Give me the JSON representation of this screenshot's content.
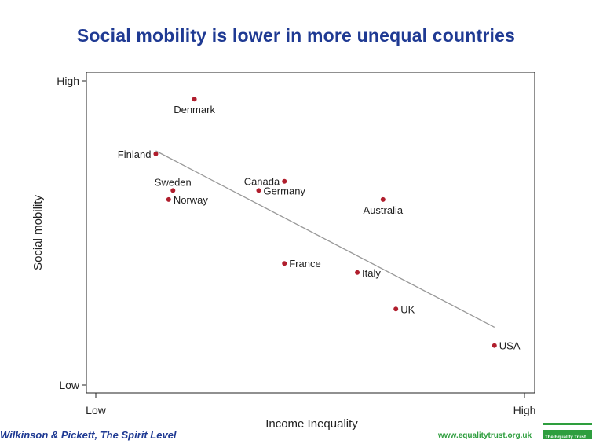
{
  "title": "Social mobility is lower in more unequal countries",
  "credit": "Wilkinson & Pickett, The Spirit Level",
  "website": "www.equalitytrust.org.uk",
  "logo_text": "The Equality Trust",
  "colors": {
    "title": "#1f3a93",
    "point": "#b01e2d",
    "trendline": "#999999",
    "website": "#2e9e3e"
  },
  "chart_data": {
    "type": "scatter",
    "xlabel": "Income Inequality",
    "ylabel": "Social mobility",
    "xlim": [
      0,
      1
    ],
    "ylim": [
      0,
      1
    ],
    "x_ticks": [
      {
        "value": 0,
        "label": "Low"
      },
      {
        "value": 1,
        "label": "High"
      }
    ],
    "y_ticks": [
      {
        "value": 0,
        "label": "Low"
      },
      {
        "value": 1,
        "label": "High"
      }
    ],
    "grid": false,
    "points": [
      {
        "label": "Denmark",
        "x": 0.23,
        "y": 0.94
      },
      {
        "label": "Finland",
        "x": 0.14,
        "y": 0.76
      },
      {
        "label": "Sweden",
        "x": 0.18,
        "y": 0.64
      },
      {
        "label": "Norway",
        "x": 0.17,
        "y": 0.61
      },
      {
        "label": "Canada",
        "x": 0.44,
        "y": 0.67
      },
      {
        "label": "Germany",
        "x": 0.38,
        "y": 0.64
      },
      {
        "label": "Australia",
        "x": 0.67,
        "y": 0.61
      },
      {
        "label": "France",
        "x": 0.44,
        "y": 0.4
      },
      {
        "label": "Italy",
        "x": 0.61,
        "y": 0.37
      },
      {
        "label": "UK",
        "x": 0.7,
        "y": 0.25
      },
      {
        "label": "USA",
        "x": 0.93,
        "y": 0.13
      }
    ],
    "trendline": {
      "x": [
        0.14,
        0.93
      ],
      "y": [
        0.77,
        0.19
      ]
    }
  }
}
